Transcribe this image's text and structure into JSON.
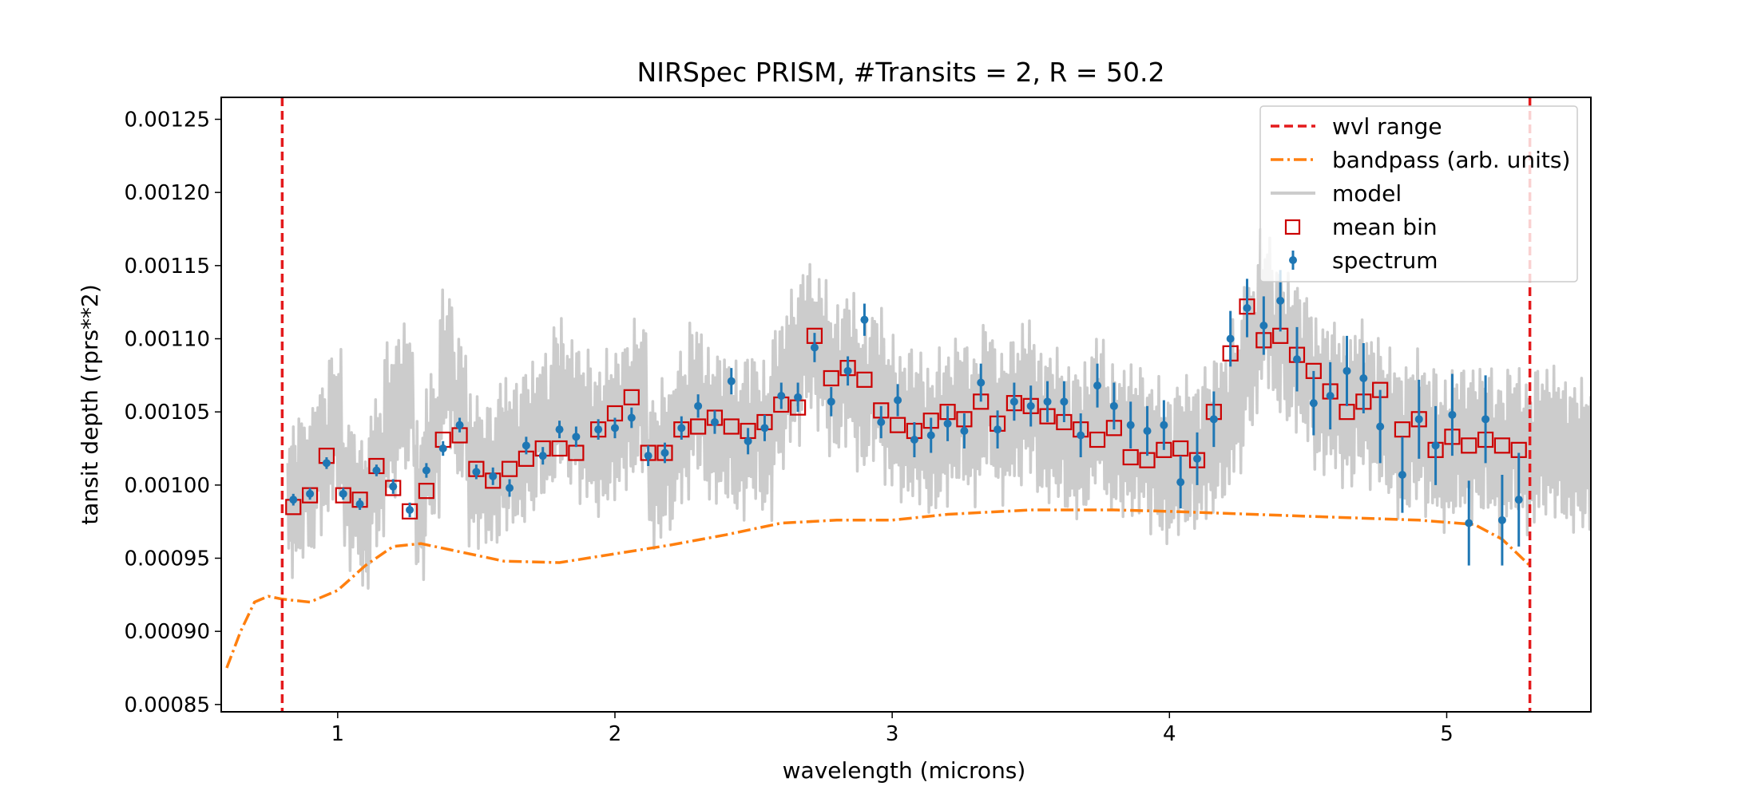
{
  "chart_data": {
    "type": "scatter",
    "title": "NIRSpec PRISM, #Transits = 2, R = 50.2",
    "xlabel": "wavelength (microns)",
    "ylabel": "tansit depth (rprs**2)",
    "xlim": [
      0.58,
      5.52
    ],
    "ylim": [
      0.000845,
      0.001265
    ],
    "x_ticks": [
      1,
      2,
      3,
      4,
      5
    ],
    "y_ticks": [
      0.00085,
      0.0009,
      0.00095,
      0.001,
      0.00105,
      0.0011,
      0.00115,
      0.0012,
      0.00125
    ],
    "y_tick_labels": [
      "0.00085",
      "0.00090",
      "0.00095",
      "0.00100",
      "0.00105",
      "0.00110",
      "0.00115",
      "0.00120",
      "0.00125"
    ],
    "grid": false,
    "legend_position": "top-right",
    "colors": {
      "wvl_range": "#e41a1c",
      "bandpass": "#ff7f0e",
      "model": "#cccccc",
      "mean_bin": "#cc0000",
      "spectrum": "#1f77b4"
    },
    "series": [
      {
        "name": "wvl range",
        "kind": "vline",
        "x": [
          0.8,
          5.3
        ]
      },
      {
        "name": "bandpass (arb. units)",
        "kind": "line",
        "x": [
          0.6,
          0.65,
          0.7,
          0.75,
          0.8,
          0.9,
          1.0,
          1.1,
          1.2,
          1.3,
          1.4,
          1.6,
          1.8,
          2.0,
          2.2,
          2.4,
          2.6,
          2.8,
          3.0,
          3.2,
          3.5,
          3.8,
          4.0,
          4.3,
          4.6,
          4.9,
          5.1,
          5.2,
          5.3
        ],
        "y": [
          0.000875,
          0.0009,
          0.00092,
          0.000924,
          0.000922,
          0.00092,
          0.000928,
          0.000945,
          0.000958,
          0.00096,
          0.000956,
          0.000948,
          0.000947,
          0.000953,
          0.000959,
          0.000966,
          0.000974,
          0.000976,
          0.000976,
          0.00098,
          0.000983,
          0.000983,
          0.000982,
          0.00098,
          0.000978,
          0.000976,
          0.000973,
          0.000963,
          0.000945
        ]
      },
      {
        "name": "model",
        "kind": "line",
        "x": [
          0.82,
          0.86,
          0.92,
          0.97,
          1.02,
          1.08,
          1.12,
          1.17,
          1.22,
          1.28,
          1.32,
          1.37,
          1.42,
          1.47,
          1.52,
          1.58,
          1.62,
          1.67,
          1.72,
          1.78,
          1.82,
          1.87,
          1.92,
          1.97,
          2.02,
          2.07,
          2.12,
          2.17,
          2.22,
          2.27,
          2.32,
          2.37,
          2.42,
          2.47,
          2.52,
          2.57,
          2.62,
          2.67,
          2.72,
          2.77,
          2.82,
          2.87,
          2.92,
          2.97,
          3.02,
          3.07,
          3.12,
          3.17,
          3.22,
          3.27,
          3.32,
          3.37,
          3.42,
          3.47,
          3.52,
          3.57,
          3.62,
          3.67,
          3.72,
          3.77,
          3.82,
          3.87,
          3.92,
          3.97,
          4.02,
          4.07,
          4.12,
          4.17,
          4.22,
          4.27,
          4.32,
          4.37,
          4.42,
          4.47,
          4.52,
          4.57,
          4.62,
          4.67,
          4.72,
          4.77,
          4.82,
          4.87,
          4.92,
          4.97,
          5.02,
          5.07,
          5.12,
          5.17,
          5.22,
          5.27,
          5.32,
          5.37,
          5.42,
          5.47,
          5.52
        ],
        "y": [
          0.00099,
          0.001,
          0.00102,
          0.00104,
          0.000995,
          0.00098,
          0.00101,
          0.001045,
          0.00106,
          0.00099,
          0.001025,
          0.00108,
          0.00105,
          0.00101,
          0.001005,
          0.00102,
          0.00102,
          0.00103,
          0.00104,
          0.00106,
          0.00105,
          0.00104,
          0.00103,
          0.00104,
          0.00105,
          0.00106,
          0.00101,
          0.00102,
          0.00104,
          0.00106,
          0.00104,
          0.00104,
          0.00103,
          0.00104,
          0.00103,
          0.00106,
          0.00108,
          0.0011,
          0.00109,
          0.00107,
          0.00108,
          0.00106,
          0.00107,
          0.00105,
          0.00104,
          0.00104,
          0.00103,
          0.00104,
          0.00105,
          0.00104,
          0.00106,
          0.00104,
          0.00105,
          0.00106,
          0.00104,
          0.00104,
          0.00103,
          0.00103,
          0.00105,
          0.00103,
          0.00103,
          0.00103,
          0.00102,
          0.00101,
          0.00102,
          0.00102,
          0.00103,
          0.00104,
          0.00106,
          0.00109,
          0.00112,
          0.0011,
          0.00109,
          0.00108,
          0.00106,
          0.00106,
          0.00105,
          0.00106,
          0.00105,
          0.00104,
          0.00103,
          0.00104,
          0.00103,
          0.00102,
          0.00103,
          0.00103,
          0.00103,
          0.00102,
          0.00103,
          0.00102,
          0.00103,
          0.00103,
          0.00102,
          0.00102,
          0.00102
        ]
      },
      {
        "name": "mean bin",
        "kind": "marker",
        "x": [
          0.84,
          0.9,
          0.96,
          1.02,
          1.08,
          1.14,
          1.2,
          1.26,
          1.32,
          1.38,
          1.44,
          1.5,
          1.56,
          1.62,
          1.68,
          1.74,
          1.8,
          1.86,
          1.94,
          2.0,
          2.06,
          2.12,
          2.18,
          2.24,
          2.3,
          2.36,
          2.42,
          2.48,
          2.54,
          2.6,
          2.66,
          2.72,
          2.78,
          2.84,
          2.9,
          2.96,
          3.02,
          3.08,
          3.14,
          3.2,
          3.26,
          3.32,
          3.38,
          3.44,
          3.5,
          3.56,
          3.62,
          3.68,
          3.74,
          3.8,
          3.86,
          3.92,
          3.98,
          4.04,
          4.1,
          4.16,
          4.22,
          4.28,
          4.34,
          4.4,
          4.46,
          4.52,
          4.58,
          4.64,
          4.7,
          4.76,
          4.84,
          4.9,
          4.96,
          5.02,
          5.08,
          5.14,
          5.2,
          5.26
        ],
        "y": [
          0.000985,
          0.000993,
          0.00102,
          0.000993,
          0.00099,
          0.001013,
          0.000998,
          0.000982,
          0.000996,
          0.001031,
          0.001034,
          0.001011,
          0.001003,
          0.001011,
          0.001018,
          0.001025,
          0.001025,
          0.001022,
          0.001038,
          0.001049,
          0.00106,
          0.001022,
          0.001022,
          0.001038,
          0.00104,
          0.001046,
          0.00104,
          0.001037,
          0.001043,
          0.001055,
          0.001053,
          0.001102,
          0.001073,
          0.00108,
          0.001072,
          0.001051,
          0.001041,
          0.001037,
          0.001044,
          0.00105,
          0.001045,
          0.001057,
          0.001042,
          0.001056,
          0.001054,
          0.001047,
          0.001043,
          0.001038,
          0.001031,
          0.001039,
          0.001019,
          0.001017,
          0.001024,
          0.001025,
          0.001017,
          0.00105,
          0.00109,
          0.001122,
          0.001099,
          0.001102,
          0.001089,
          0.001078,
          0.001064,
          0.00105,
          0.001057,
          0.001065,
          0.001038,
          0.001045,
          0.001024,
          0.001033,
          0.001027,
          0.001031,
          0.001027,
          0.001024
        ]
      },
      {
        "name": "spectrum",
        "kind": "errorbar",
        "x": [
          0.84,
          0.9,
          0.96,
          1.02,
          1.08,
          1.14,
          1.2,
          1.26,
          1.32,
          1.38,
          1.44,
          1.5,
          1.56,
          1.62,
          1.68,
          1.74,
          1.8,
          1.86,
          1.94,
          2.0,
          2.06,
          2.12,
          2.18,
          2.24,
          2.3,
          2.36,
          2.42,
          2.48,
          2.54,
          2.6,
          2.66,
          2.72,
          2.78,
          2.84,
          2.9,
          2.96,
          3.02,
          3.08,
          3.14,
          3.2,
          3.26,
          3.32,
          3.38,
          3.44,
          3.5,
          3.56,
          3.62,
          3.68,
          3.74,
          3.8,
          3.86,
          3.92,
          3.98,
          4.04,
          4.1,
          4.16,
          4.22,
          4.28,
          4.34,
          4.4,
          4.46,
          4.52,
          4.58,
          4.64,
          4.7,
          4.76,
          4.84,
          4.9,
          4.96,
          5.02,
          5.08,
          5.14,
          5.2,
          5.26
        ],
        "y": [
          0.00099,
          0.000994,
          0.001015,
          0.000994,
          0.000987,
          0.00101,
          0.000999,
          0.000983,
          0.00101,
          0.001025,
          0.001041,
          0.001009,
          0.001006,
          0.000998,
          0.001027,
          0.00102,
          0.001038,
          0.001033,
          0.001038,
          0.001039,
          0.001046,
          0.00102,
          0.001022,
          0.001039,
          0.001054,
          0.001043,
          0.001071,
          0.00103,
          0.001039,
          0.001061,
          0.00106,
          0.001094,
          0.001057,
          0.001078,
          0.001113,
          0.001043,
          0.001058,
          0.001031,
          0.001034,
          0.001042,
          0.001037,
          0.00107,
          0.001038,
          0.001057,
          0.001054,
          0.001057,
          0.001057,
          0.001034,
          0.001068,
          0.001054,
          0.001041,
          0.001037,
          0.001041,
          0.001002,
          0.001018,
          0.001045,
          0.0011,
          0.001121,
          0.001109,
          0.001126,
          0.001086,
          0.001056,
          0.001061,
          0.001078,
          0.001073,
          0.00104,
          0.001007,
          0.001045,
          0.001027,
          0.001048,
          0.000974,
          0.001045,
          0.000976,
          0.00099
        ],
        "yerr": [
          4e-06,
          4e-06,
          4e-06,
          4e-06,
          4e-06,
          4e-06,
          5e-06,
          5e-06,
          5e-06,
          5e-06,
          5e-06,
          5e-06,
          6e-06,
          6e-06,
          6e-06,
          6e-06,
          6e-06,
          7e-06,
          7e-06,
          7e-06,
          7e-06,
          7e-06,
          7e-06,
          8e-06,
          8e-06,
          8e-06,
          9e-06,
          9e-06,
          9e-06,
          9e-06,
          1e-05,
          1e-05,
          1e-05,
          1e-05,
          1.1e-05,
          1.1e-05,
          1.1e-05,
          1.2e-05,
          1.2e-05,
          1.2e-05,
          1.2e-05,
          1.3e-05,
          1.3e-05,
          1.3e-05,
          1.4e-05,
          1.4e-05,
          1.4e-05,
          1.5e-05,
          1.5e-05,
          1.6e-05,
          1.6e-05,
          1.7e-05,
          1.7e-05,
          1.8e-05,
          1.8e-05,
          1.9e-05,
          1.9e-05,
          2e-05,
          2e-05,
          2.1e-05,
          2.2e-05,
          2.2e-05,
          2.3e-05,
          2.4e-05,
          2.4e-05,
          2.5e-05,
          2.6e-05,
          2.7e-05,
          2.7e-05,
          2.8e-05,
          2.9e-05,
          3e-05,
          3.1e-05,
          3.2e-05
        ]
      }
    ]
  }
}
